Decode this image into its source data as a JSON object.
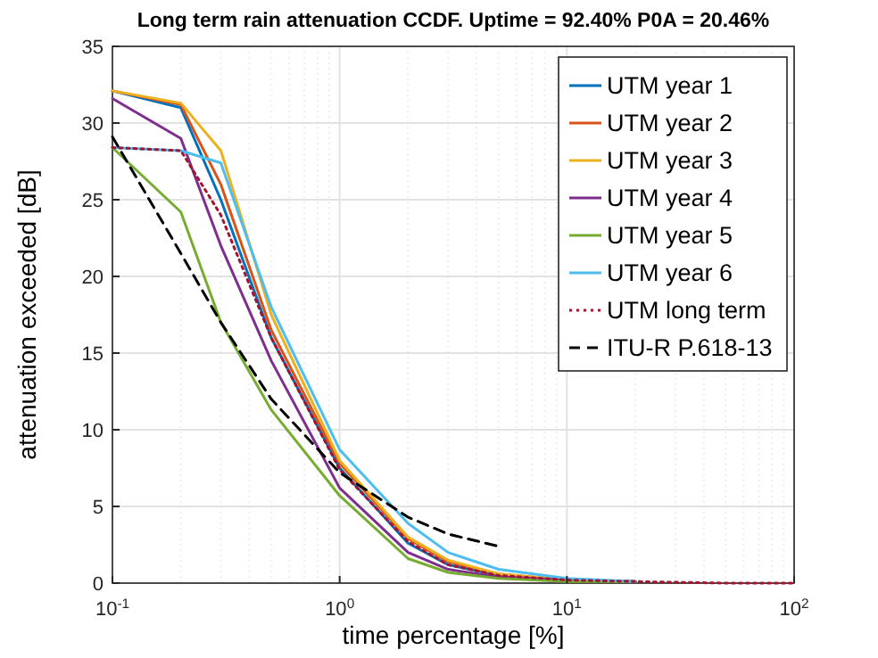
{
  "chart_data": {
    "type": "line",
    "title": "Long term rain attenuation CCDF. Uptime = 92.40%  P0A = 20.46%",
    "xlabel": "time percentage [%]",
    "ylabel": "attenuation exceeded [dB]",
    "log": "x",
    "grid": true,
    "legend": "top right",
    "xlim": [
      0.1,
      100
    ],
    "xticks": [
      {
        "value": 0.1,
        "label": "10$^{-1}$"
      },
      {
        "value": 1,
        "label": "10$^{0}$"
      },
      {
        "value": 10,
        "label": "10$^{1}$"
      },
      {
        "value": 100,
        "label": "10$^{2}$"
      }
    ],
    "ylim": [
      0,
      35
    ],
    "yticks": [
      0,
      5,
      10,
      15,
      20,
      25,
      30,
      35
    ],
    "x": [
      0.1,
      0.2,
      0.3,
      0.5,
      1,
      2,
      3,
      5,
      10,
      20,
      50,
      100
    ],
    "series": [
      {
        "name": "UTM year 1",
        "color": "#0072bd",
        "values": [
          32.1,
          31.0,
          25,
          16,
          7.5,
          2.6,
          1.2,
          0.5,
          0.2,
          0.1,
          null,
          null
        ]
      },
      {
        "name": "UTM year 2",
        "color": "#d95319",
        "values": [
          32.1,
          31.2,
          26,
          16.5,
          7.8,
          2.9,
          1.4,
          0.6,
          0.2,
          0.1,
          null,
          null
        ]
      },
      {
        "name": "UTM year 3",
        "color": "#edb120",
        "values": [
          32.1,
          31.3,
          28.2,
          17.5,
          8.0,
          3.0,
          1.5,
          0.6,
          0.2,
          0.1,
          null,
          null
        ]
      },
      {
        "name": "UTM year 4",
        "color": "#7e2f8e",
        "values": [
          31.6,
          29.0,
          22,
          14.5,
          6.2,
          2.0,
          0.9,
          0.4,
          0.2,
          0.1,
          null,
          null
        ]
      },
      {
        "name": "UTM year 5",
        "color": "#77ac30",
        "values": [
          28.4,
          24.2,
          17,
          11.3,
          5.7,
          1.6,
          0.7,
          0.3,
          0.1,
          0.1,
          null,
          null
        ]
      },
      {
        "name": "UTM year 6",
        "color": "#4dbeee",
        "values": [
          28.4,
          28.2,
          27.4,
          18,
          8.7,
          3.9,
          2.0,
          0.9,
          0.3,
          0.1,
          null,
          null
        ]
      },
      {
        "name": "UTM long term",
        "color": "#a2142f",
        "line_style": "dotted",
        "values": [
          28.4,
          28.2,
          24,
          16,
          7.4,
          2.7,
          1.2,
          0.5,
          0.2,
          0.1,
          0,
          0
        ]
      },
      {
        "name": "ITU-R P.618-13",
        "color": "#000000",
        "line_style": "dashed",
        "x": [
          0.1,
          0.2,
          0.3,
          0.5,
          1,
          2,
          3,
          5
        ],
        "values": [
          29.1,
          21.5,
          17,
          12,
          7.2,
          4.3,
          3.2,
          2.4
        ]
      }
    ]
  }
}
